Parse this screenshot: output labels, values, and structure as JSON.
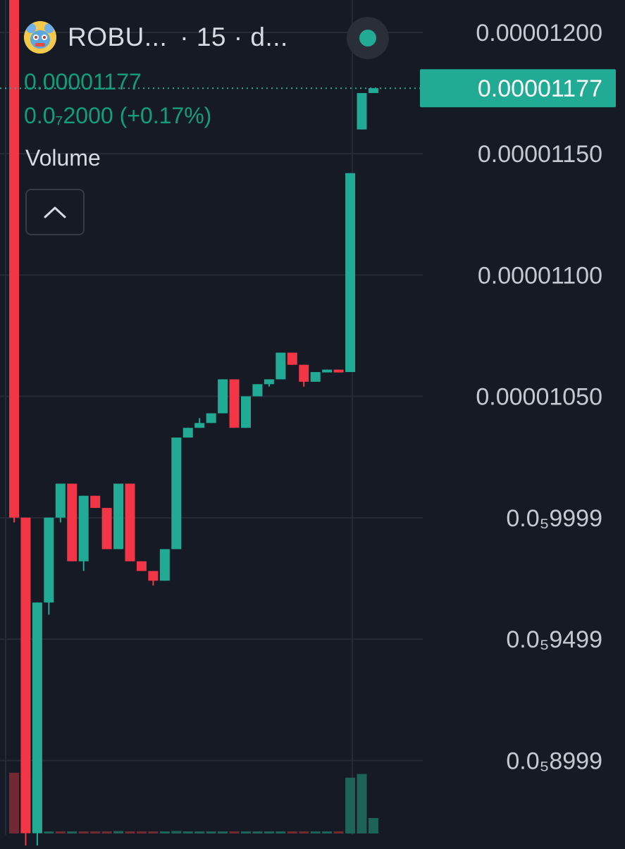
{
  "legend": {
    "symbol": "ROBU...",
    "interval_text": "· 15 · d...",
    "last_price": "0.00001177",
    "change_text": "0.0₇2000 (+0.17%)",
    "volume_label": "Volume"
  },
  "icons": {
    "token": "token-logo-icon",
    "collapse": "chevron-up-icon",
    "live": "live-status-dot-icon"
  },
  "colors": {
    "background": "#161a25",
    "up": "#22ab94",
    "down": "#f23645",
    "axis_text": "#c6c9d1",
    "grid": "#262a36"
  },
  "chart_data": {
    "type": "candlestick",
    "price_axis": {
      "ticks": [
        {
          "value": 1.2e-05,
          "label": "0.00001200"
        },
        {
          "value": 1.15e-05,
          "label": "0.00001150"
        },
        {
          "value": 1.1e-05,
          "label": "0.00001100"
        },
        {
          "value": 1.05e-05,
          "label": "0.00001050"
        },
        {
          "value": 9.999e-06,
          "label": "0.0₅9999"
        },
        {
          "value": 9.499e-06,
          "label": "0.0₅9499"
        },
        {
          "value": 8.999e-06,
          "label": "0.0₅8999"
        }
      ],
      "last_price_label": "0.00001177",
      "last_price": 1.177e-05
    },
    "candles": [
      {
        "o": 1.38e-05,
        "h": 1.39e-05,
        "c": 1e-05,
        "l": 9.98e-06
      },
      {
        "o": 1e-05,
        "h": 1e-05,
        "c": 8.7e-06,
        "l": 8.6e-06
      },
      {
        "o": 8.7e-06,
        "h": 9.65e-06,
        "c": 9.65e-06,
        "l": 8.6e-06
      },
      {
        "o": 9.65e-06,
        "h": 1e-05,
        "c": 1e-05,
        "l": 9.6e-06
      },
      {
        "o": 1e-05,
        "h": 1.014e-05,
        "c": 1.014e-05,
        "l": 9.98e-06
      },
      {
        "o": 1.014e-05,
        "h": 1.014e-05,
        "c": 9.82e-06,
        "l": 9.82e-06
      },
      {
        "o": 9.82e-06,
        "h": 1.009e-05,
        "c": 1.009e-05,
        "l": 9.78e-06
      },
      {
        "o": 1.009e-05,
        "h": 1.009e-05,
        "c": 1.004e-05,
        "l": 1.004e-05
      },
      {
        "o": 1.004e-05,
        "h": 1.004e-05,
        "c": 9.87e-06,
        "l": 9.87e-06
      },
      {
        "o": 9.87e-06,
        "h": 1.014e-05,
        "c": 1.014e-05,
        "l": 9.87e-06
      },
      {
        "o": 1.014e-05,
        "h": 1.014e-05,
        "c": 9.82e-06,
        "l": 9.82e-06
      },
      {
        "o": 9.82e-06,
        "h": 9.82e-06,
        "c": 9.78e-06,
        "l": 9.78e-06
      },
      {
        "o": 9.78e-06,
        "h": 9.78e-06,
        "c": 9.74e-06,
        "l": 9.72e-06
      },
      {
        "o": 9.74e-06,
        "h": 9.87e-06,
        "c": 9.87e-06,
        "l": 9.74e-06
      },
      {
        "o": 9.87e-06,
        "h": 1.033e-05,
        "c": 1.033e-05,
        "l": 9.87e-06
      },
      {
        "o": 1.033e-05,
        "h": 1.037e-05,
        "c": 1.037e-05,
        "l": 1.033e-05
      },
      {
        "o": 1.037e-05,
        "h": 1.041e-05,
        "c": 1.039e-05,
        "l": 1.037e-05
      },
      {
        "o": 1.039e-05,
        "h": 1.043e-05,
        "c": 1.043e-05,
        "l": 1.039e-05
      },
      {
        "o": 1.043e-05,
        "h": 1.057e-05,
        "c": 1.057e-05,
        "l": 1.043e-05
      },
      {
        "o": 1.057e-05,
        "h": 1.057e-05,
        "c": 1.037e-05,
        "l": 1.037e-05
      },
      {
        "o": 1.037e-05,
        "h": 1.05e-05,
        "c": 1.05e-05,
        "l": 1.037e-05
      },
      {
        "o": 1.05e-05,
        "h": 1.055e-05,
        "c": 1.055e-05,
        "l": 1.05e-05
      },
      {
        "o": 1.055e-05,
        "h": 1.057e-05,
        "c": 1.057e-05,
        "l": 1.054e-05
      },
      {
        "o": 1.057e-05,
        "h": 1.068e-05,
        "c": 1.068e-05,
        "l": 1.057e-05
      },
      {
        "o": 1.068e-05,
        "h": 1.068e-05,
        "c": 1.063e-05,
        "l": 1.063e-05
      },
      {
        "o": 1.063e-05,
        "h": 1.063e-05,
        "c": 1.056e-05,
        "l": 1.054e-05
      },
      {
        "o": 1.056e-05,
        "h": 1.06e-05,
        "c": 1.06e-05,
        "l": 1.056e-05
      },
      {
        "o": 1.06e-05,
        "h": 1.061e-05,
        "c": 1.061e-05,
        "l": 1.06e-05
      },
      {
        "o": 1.061e-05,
        "h": 1.061e-05,
        "c": 1.06e-05,
        "l": 1.06e-05
      },
      {
        "o": 1.06e-05,
        "h": 1.142e-05,
        "c": 1.142e-05,
        "l": 1.06e-05
      },
      {
        "o": 1.16e-05,
        "h": 1.175e-05,
        "c": 1.175e-05,
        "l": 1.16e-05
      },
      {
        "o": 1.175e-05,
        "h": 1.177e-05,
        "c": 1.177e-05,
        "l": 1.175e-05
      }
    ],
    "volume": [
      0.98,
      0.98,
      0.95,
      0.03,
      0.02,
      0.03,
      0.03,
      0.03,
      0.03,
      0.04,
      0.03,
      0.03,
      0.03,
      0.03,
      0.04,
      0.03,
      0.03,
      0.03,
      0.03,
      0.03,
      0.03,
      0.03,
      0.03,
      0.03,
      0.03,
      0.03,
      0.03,
      0.02,
      0.03,
      0.9,
      0.96,
      0.25
    ],
    "volume_up": [
      false,
      false,
      true,
      true,
      false,
      true,
      false,
      false,
      false,
      true,
      false,
      false,
      false,
      true,
      true,
      true,
      true,
      true,
      true,
      false,
      true,
      true,
      true,
      true,
      false,
      false,
      true,
      true,
      false,
      true,
      true,
      true
    ]
  }
}
